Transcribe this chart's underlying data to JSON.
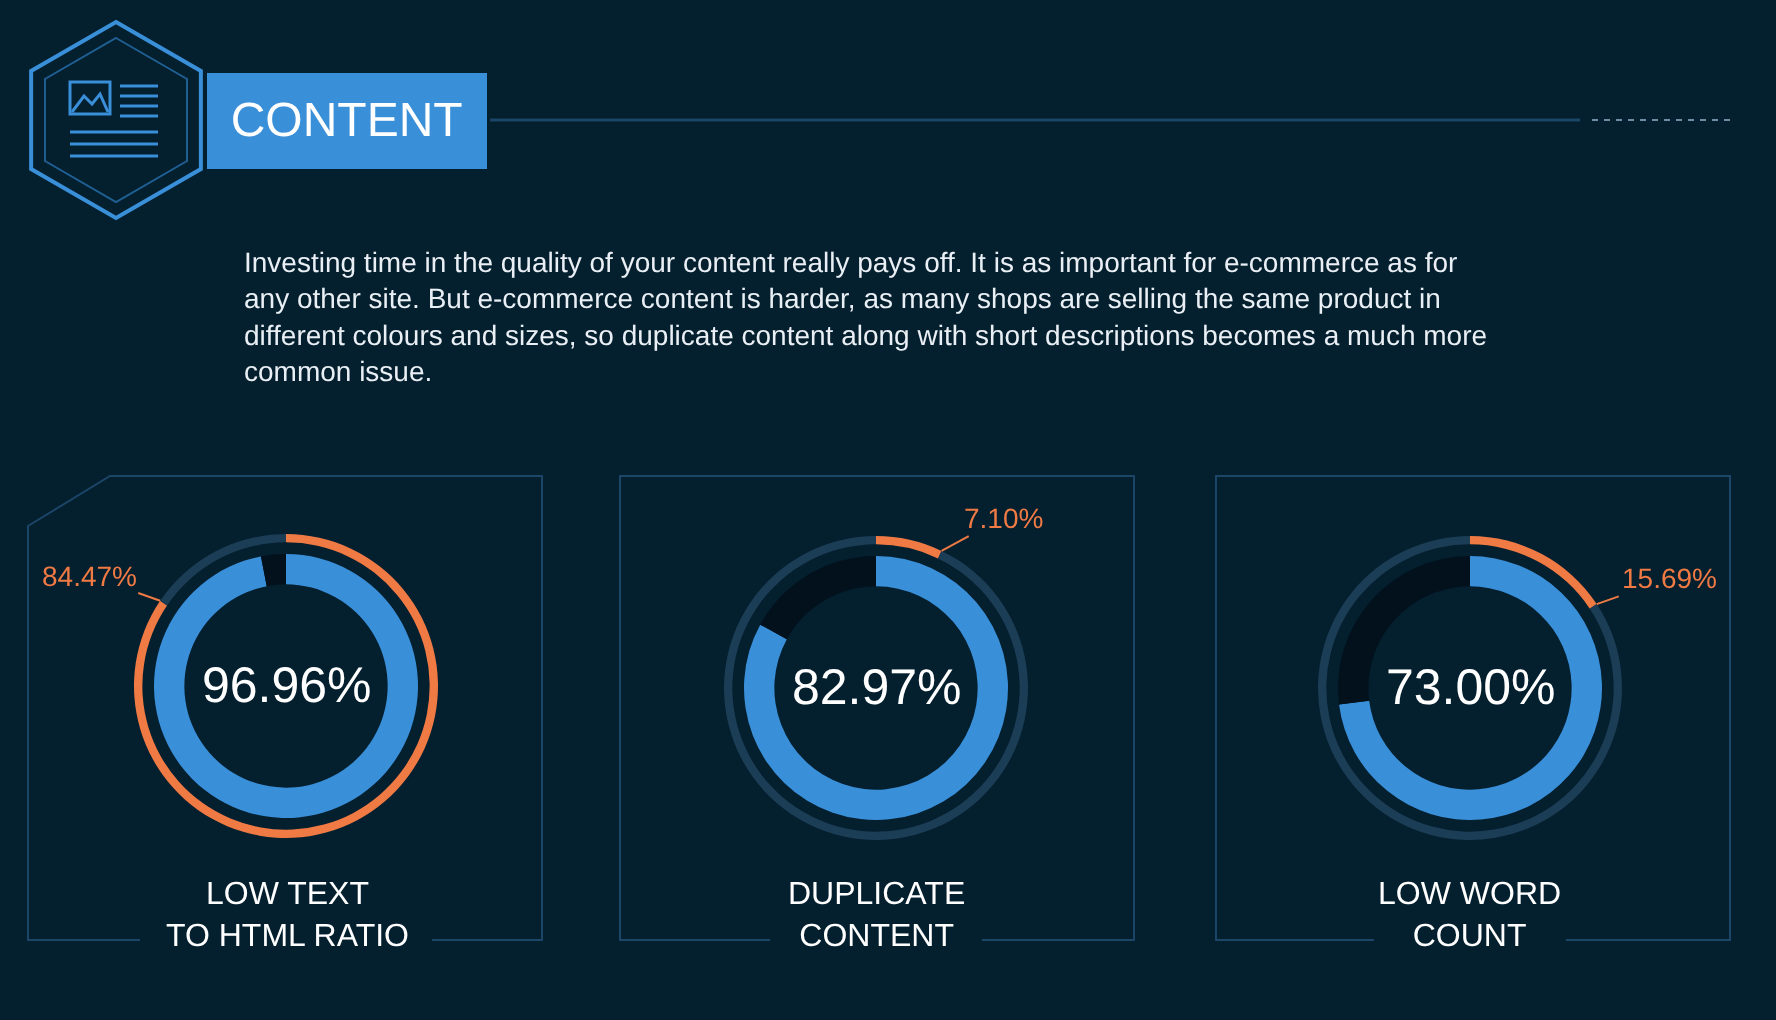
{
  "chart_data": [
    {
      "type": "other",
      "title": "CONTENT",
      "annotations": [
        "Investing time in the quality of your content really pays off. It is as important for e-commerce as for any other site. But e-commerce content is harder, as many shops are selling the same product in different colours and sizes, so duplicate content along with short descriptions becomes a much more common issue."
      ]
    },
    {
      "type": "donut",
      "title": "LOW TEXT\nTO HTML RATIO",
      "categories": [
        null,
        null
      ],
      "series": [
        {
          "values": [
            96.96,
            3.04
          ],
          "colors": [
            "#3a8fd9",
            "#02111c"
          ],
          "value_labels": [
            "96.96%",
            null
          ]
        },
        {
          "values": [
            84.47,
            15.53
          ],
          "colors": [
            "#ef7a44",
            "#1b3d55"
          ],
          "value_labels": [
            "84.47%",
            null
          ]
        }
      ]
    },
    {
      "type": "donut",
      "title": "DUPLICATE\nCONTENT",
      "categories": [
        null,
        null
      ],
      "series": [
        {
          "values": [
            82.97,
            17.03
          ],
          "colors": [
            "#3a8fd9",
            "#02111c"
          ],
          "value_labels": [
            "82.97%",
            null
          ]
        },
        {
          "values": [
            7.1,
            92.9
          ],
          "colors": [
            "#ef7a44",
            "#1b3d55"
          ],
          "value_labels": [
            "7.10%",
            null
          ]
        }
      ]
    },
    {
      "type": "donut",
      "title": "LOW WORD\nCOUNT",
      "categories": [
        null,
        null
      ],
      "series": [
        {
          "values": [
            73.0,
            27.0
          ],
          "colors": [
            "#3a8fd9",
            "#02111c"
          ],
          "value_labels": [
            "73.00%",
            null
          ]
        },
        {
          "values": [
            15.69,
            84.31
          ],
          "colors": [
            "#ef7a44",
            "#1b3d55"
          ],
          "value_labels": [
            "15.69%",
            null
          ]
        }
      ]
    }
  ]
}
